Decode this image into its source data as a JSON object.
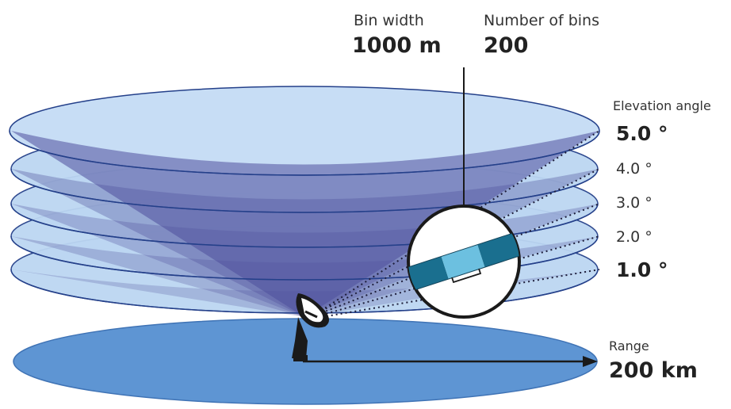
{
  "bin_width": {
    "label": "Bin width",
    "value": "1000 m"
  },
  "number_of_bins": {
    "label": "Number of bins",
    "value": "200"
  },
  "elevation": {
    "title": "Elevation angle",
    "angles": [
      "5.0 °",
      "4.0 °",
      "3.0 °",
      "2.0 °",
      "1.0 °"
    ]
  },
  "range": {
    "label": "Range",
    "value": "200 km"
  },
  "colors": {
    "disc_fill": "#b9d4f1",
    "disc_stroke": "#24408a",
    "cone_fill": "#5d5fa6",
    "ground": "#5e95d3",
    "bin_dark": "#1a6f8f",
    "bin_light": "#6cc0e0"
  }
}
